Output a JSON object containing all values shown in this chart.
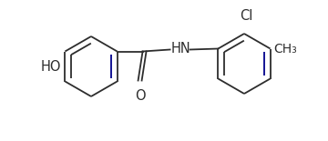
{
  "bg_color": "#ffffff",
  "line_color": "#2d2d2d",
  "line_color_dark": "#00008B",
  "text_color": "#2d2d2d",
  "ho_label": "HO",
  "nh_label": "HN",
  "o_label": "O",
  "cl_label": "Cl",
  "me_label": "CH₃",
  "font_size": 10.5
}
